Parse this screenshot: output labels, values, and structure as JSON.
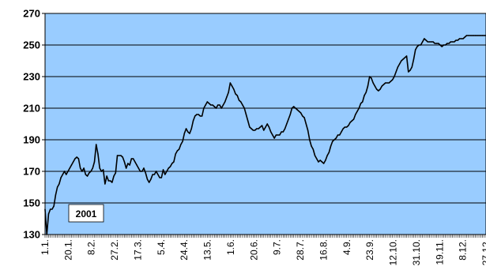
{
  "chart_data": {
    "type": "line",
    "title": "",
    "xlabel": "",
    "ylabel": "",
    "ylim": [
      130,
      270
    ],
    "yticks": [
      130,
      150,
      170,
      190,
      210,
      230,
      250,
      270
    ],
    "grid": "horizontal",
    "plot_background": "#99CCFF",
    "line_color": "#000000",
    "annotation": "2001",
    "x_tick_labels": [
      "1.1.",
      "20.1.",
      "8.2.",
      "27.2.",
      "17.3.",
      "5.4.",
      "24.4.",
      "13.5.",
      "1.6.",
      "20.6.",
      "9.7.",
      "28.7.",
      "16.8.",
      "4.9.",
      "23.9.",
      "12.10.",
      "31.10.",
      "19.11.",
      "8.12.",
      "27.12."
    ],
    "series": [
      {
        "x": [
          0,
          1,
          2,
          3,
          4,
          5,
          6,
          7,
          8,
          9,
          10,
          11,
          12,
          13,
          14,
          15,
          16,
          17,
          18,
          19,
          20,
          21,
          22,
          23,
          24,
          25,
          26,
          27,
          28,
          29,
          30,
          31,
          32,
          33,
          34,
          35,
          36,
          37,
          38,
          39,
          40,
          41,
          42,
          43,
          44,
          45,
          46,
          47,
          48,
          49,
          50,
          51,
          52,
          53,
          54,
          55,
          56,
          57,
          58,
          59,
          60,
          61,
          62,
          63,
          64,
          65,
          66,
          67,
          68,
          69,
          70,
          71,
          72,
          73,
          74,
          75,
          76,
          77,
          78,
          79,
          80,
          81,
          82,
          83,
          84,
          85,
          86,
          87,
          88,
          89,
          90,
          91,
          92,
          93,
          94,
          95,
          96,
          97,
          98,
          99,
          100,
          101,
          102,
          103,
          104,
          105,
          106,
          107,
          108,
          109,
          110,
          111,
          112,
          113,
          114,
          115,
          116,
          117,
          118,
          119,
          120,
          121,
          122,
          123,
          124,
          125,
          126,
          127,
          128,
          129,
          130,
          131,
          132,
          133,
          134,
          135,
          136,
          137,
          138,
          139,
          140,
          141,
          142,
          143,
          144,
          145,
          146,
          147,
          148,
          149,
          150,
          151,
          152,
          153,
          154,
          155,
          156,
          157,
          158,
          159,
          160,
          161,
          162,
          163,
          164,
          165,
          166,
          167,
          168,
          169,
          170,
          171,
          172,
          173,
          174,
          175,
          176,
          177,
          178,
          179,
          180,
          181,
          182,
          183,
          184,
          185,
          186,
          187,
          188,
          189,
          190,
          191,
          192,
          193,
          194,
          195,
          196,
          197,
          198,
          199,
          200,
          201,
          202,
          203,
          204,
          205,
          206,
          207,
          208,
          209,
          210,
          211,
          212,
          213,
          214,
          215,
          216,
          217,
          218,
          219,
          220,
          221,
          222,
          223,
          224,
          225,
          226,
          227,
          228,
          229,
          230,
          231,
          232,
          233,
          234,
          235,
          236,
          237,
          238,
          239,
          240,
          241,
          242,
          243,
          244,
          245,
          246,
          247,
          248,
          249,
          250
        ],
        "values": [
          146,
          130,
          143,
          146,
          146,
          148,
          155,
          160,
          162,
          166,
          168,
          170,
          168,
          170,
          172,
          174,
          176,
          178,
          179,
          178,
          172,
          170,
          172,
          168,
          167,
          169,
          170,
          172,
          176,
          187,
          181,
          172,
          170,
          171,
          162,
          167,
          164,
          164,
          163,
          167,
          169,
          180,
          180,
          180,
          179,
          176,
          172,
          175,
          174,
          178,
          178,
          176,
          174,
          172,
          170,
          170,
          172,
          169,
          165,
          163,
          165,
          168,
          168,
          170,
          168,
          166,
          166,
          171,
          168,
          170,
          172,
          173,
          175,
          176,
          181,
          183,
          184,
          187,
          189,
          194,
          197,
          195,
          194,
          197,
          202,
          205,
          206,
          206,
          205,
          205,
          210,
          212,
          214,
          213,
          212,
          212,
          211,
          210,
          212,
          212,
          210,
          212,
          214,
          217,
          220,
          226,
          224,
          222,
          219,
          218,
          215,
          214,
          212,
          210,
          206,
          202,
          198,
          197,
          196,
          196,
          197,
          197,
          198,
          199,
          196,
          198,
          200,
          198,
          195,
          193,
          191,
          193,
          193,
          193,
          195,
          195,
          197,
          200,
          203,
          206,
          210,
          211,
          210,
          209,
          208,
          207,
          205,
          204,
          200,
          196,
          190,
          186,
          184,
          180,
          178,
          176,
          177,
          176,
          175,
          177,
          180,
          182,
          186,
          189,
          190,
          191,
          193,
          193,
          195,
          197,
          198,
          198,
          199,
          201,
          202,
          203,
          206,
          208,
          210,
          213,
          214,
          218,
          220,
          224,
          230,
          229,
          226,
          224,
          222,
          221,
          222,
          224,
          225,
          226,
          226,
          226,
          227,
          228,
          230,
          233,
          236,
          238,
          240,
          241,
          242,
          243,
          233,
          234,
          236,
          241,
          247,
          249,
          250,
          250,
          252,
          254,
          253,
          252,
          252,
          252,
          252,
          251,
          251,
          251,
          250,
          249,
          250,
          250,
          251,
          251,
          252,
          252,
          252,
          253,
          253,
          254,
          254,
          254,
          255,
          256,
          256,
          256,
          256,
          256,
          256,
          256,
          256,
          256,
          256,
          256,
          256
        ]
      }
    ]
  }
}
